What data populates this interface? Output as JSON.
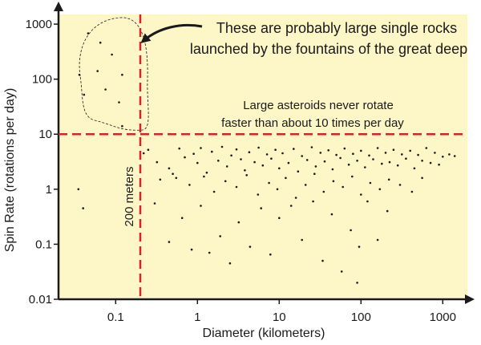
{
  "colors": {
    "plot_bg": "#fdf6c7",
    "axis": "#1a1a1a",
    "threshold": "#d6222a",
    "point": "#1a1a1a",
    "annotation": "#1a1a1a"
  },
  "chart_data": {
    "type": "scatter",
    "xscale": "log",
    "yscale": "log",
    "xlabel": "Diameter (kilometers)",
    "ylabel": "Spin Rate (rotations per day)",
    "xlim": [
      0.02,
      2000
    ],
    "ylim": [
      0.01,
      1500
    ],
    "xticks": [
      0.1,
      1,
      10,
      100,
      1000
    ],
    "xtick_labels": [
      "0.1",
      "1",
      "10",
      "100",
      "1000"
    ],
    "yticks": [
      0.01,
      0.1,
      1,
      10,
      100,
      1000
    ],
    "ytick_labels": [
      "0.01",
      "0.1",
      "1",
      "10",
      "100",
      "1000"
    ],
    "vertical_line": {
      "x": 0.2,
      "label": "200 meters"
    },
    "horizontal_line": {
      "y": 10
    },
    "annotations": {
      "rocks_line1": "These are probably large single rocks",
      "rocks_line2": "launched by the fountains of the great deep",
      "asteroids_line1": "Large asteroids never rotate",
      "asteroids_line2": "faster than about 10 times per day"
    },
    "points": {
      "small_fast": [
        [
          0.046,
          680
        ],
        [
          0.065,
          460
        ],
        [
          0.036,
          120
        ],
        [
          0.041,
          52
        ],
        [
          0.09,
          280
        ],
        [
          0.12,
          120
        ],
        [
          0.06,
          140
        ],
        [
          0.075,
          65
        ],
        [
          0.11,
          38
        ],
        [
          0.12,
          14
        ]
      ],
      "small_slow": [
        [
          0.035,
          1.0
        ],
        [
          0.04,
          0.45
        ]
      ],
      "main": [
        [
          0.22,
          4.5
        ],
        [
          0.25,
          5.2
        ],
        [
          0.32,
          3.1
        ],
        [
          0.45,
          2.4
        ],
        [
          0.6,
          5.5
        ],
        [
          0.7,
          3.8
        ],
        [
          0.55,
          1.6
        ],
        [
          0.9,
          4.4
        ],
        [
          1.0,
          3.0
        ],
        [
          1.1,
          5.6
        ],
        [
          1.3,
          2.0
        ],
        [
          1.5,
          4.8
        ],
        [
          1.8,
          3.3
        ],
        [
          2.0,
          5.9
        ],
        [
          2.3,
          2.6
        ],
        [
          2.6,
          4.1
        ],
        [
          3.0,
          5.3
        ],
        [
          3.4,
          3.5
        ],
        [
          3.8,
          2.2
        ],
        [
          4.3,
          4.7
        ],
        [
          5.0,
          3.1
        ],
        [
          5.6,
          5.7
        ],
        [
          6.3,
          2.7
        ],
        [
          7.1,
          4.3
        ],
        [
          8.0,
          3.6
        ],
        [
          9.0,
          5.2
        ],
        [
          10,
          2.4
        ],
        [
          11,
          4.5
        ],
        [
          13,
          3.0
        ],
        [
          15,
          5.4
        ],
        [
          17,
          2.1
        ],
        [
          19,
          4.0
        ],
        [
          22,
          3.4
        ],
        [
          25,
          5.8
        ],
        [
          28,
          2.6
        ],
        [
          32,
          4.6
        ],
        [
          36,
          3.2
        ],
        [
          40,
          5.1
        ],
        [
          45,
          2.3
        ],
        [
          50,
          4.2
        ],
        [
          56,
          3.7
        ],
        [
          63,
          5.5
        ],
        [
          71,
          2.8
        ],
        [
          80,
          4.4
        ],
        [
          90,
          3.3
        ],
        [
          100,
          5.0
        ],
        [
          112,
          2.5
        ],
        [
          126,
          4.1
        ],
        [
          141,
          3.5
        ],
        [
          160,
          5.6
        ],
        [
          180,
          2.9
        ],
        [
          200,
          4.6
        ],
        [
          224,
          3.1
        ],
        [
          250,
          5.2
        ],
        [
          282,
          2.7
        ],
        [
          316,
          4.3
        ],
        [
          355,
          3.6
        ],
        [
          400,
          5.0
        ],
        [
          450,
          2.4
        ],
        [
          500,
          4.2
        ],
        [
          560,
          3.3
        ],
        [
          630,
          5.6
        ],
        [
          710,
          3.0
        ],
        [
          800,
          4.6
        ],
        [
          900,
          2.8
        ],
        [
          1000,
          3.9
        ],
        [
          1200,
          4.3
        ],
        [
          1400,
          4.0
        ],
        [
          0.35,
          1.5
        ],
        [
          0.5,
          1.9
        ],
        [
          0.8,
          1.2
        ],
        [
          1.2,
          1.7
        ],
        [
          1.6,
          0.9
        ],
        [
          2.2,
          1.4
        ],
        [
          3.0,
          1.1
        ],
        [
          4.0,
          1.8
        ],
        [
          5.5,
          0.8
        ],
        [
          7.5,
          1.3
        ],
        [
          9.5,
          1.0
        ],
        [
          12,
          1.6
        ],
        [
          16,
          0.7
        ],
        [
          21,
          1.2
        ],
        [
          27,
          1.9
        ],
        [
          35,
          0.9
        ],
        [
          46,
          1.4
        ],
        [
          60,
          1.1
        ],
        [
          78,
          1.7
        ],
        [
          100,
          0.8
        ],
        [
          130,
          1.3
        ],
        [
          170,
          1.0
        ],
        [
          220,
          1.5
        ],
        [
          300,
          1.2
        ],
        [
          420,
          0.9
        ],
        [
          560,
          1.6
        ],
        [
          0.3,
          0.55
        ],
        [
          0.45,
          0.11
        ],
        [
          0.65,
          0.3
        ],
        [
          0.85,
          0.08
        ],
        [
          1.1,
          0.5
        ],
        [
          1.4,
          0.07
        ],
        [
          1.9,
          0.14
        ],
        [
          2.5,
          0.045
        ],
        [
          3.2,
          0.25
        ],
        [
          4.4,
          0.09
        ],
        [
          6.0,
          0.45
        ],
        [
          7.8,
          0.065
        ],
        [
          10,
          0.3
        ],
        [
          14,
          0.5
        ],
        [
          19,
          0.12
        ],
        [
          26,
          0.6
        ],
        [
          34,
          0.05
        ],
        [
          44,
          0.35
        ],
        [
          58,
          0.032
        ],
        [
          75,
          0.18
        ],
        [
          95,
          0.09
        ],
        [
          120,
          0.6
        ],
        [
          160,
          0.12
        ],
        [
          210,
          0.4
        ],
        [
          90,
          0.02
        ]
      ]
    }
  }
}
